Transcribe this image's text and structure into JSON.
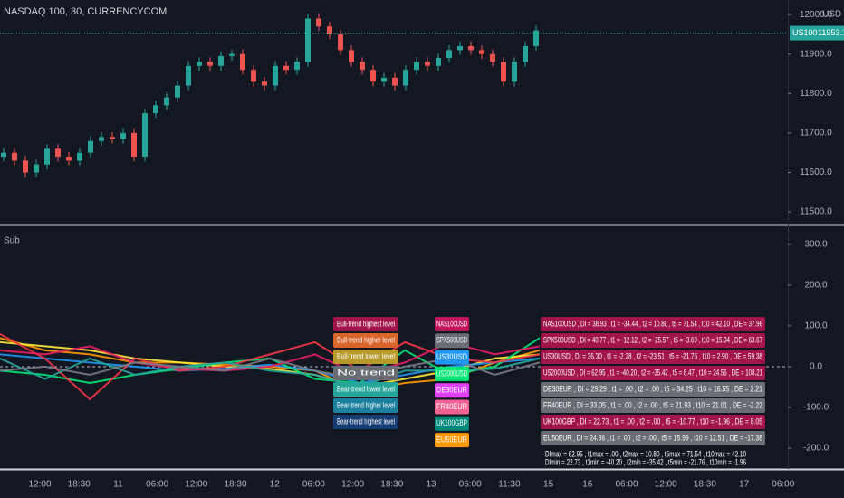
{
  "chart_data": [
    {
      "type": "candlestick",
      "title": "NASDAQ 100, 30, CURRENCYCOM",
      "currency": "USD",
      "up_color": "#26a69a",
      "down_color": "#ef5350",
      "price_line": {
        "label": "US100",
        "value": 11953.1,
        "color": "#26a69a"
      },
      "ylim": [
        11468,
        12037
      ],
      "yticks": [
        {
          "value": 11500,
          "label": "11500.0"
        },
        {
          "value": 11600,
          "label": "11600.0"
        },
        {
          "value": 11700,
          "label": "11700.0"
        },
        {
          "value": 11800,
          "label": "11800.0"
        },
        {
          "value": 11900,
          "label": "11900.0"
        },
        {
          "value": 12000,
          "label": "12000.0"
        }
      ],
      "open": [
        11640,
        11650,
        11630,
        11600,
        11620,
        11660,
        11640,
        11630,
        11650,
        11680,
        11690,
        11685,
        11700,
        11640,
        11750,
        11770,
        11790,
        11820,
        11870,
        11880,
        11870,
        11895,
        11900,
        11860,
        11830,
        11820,
        11870,
        11860,
        11880,
        11990,
        11970,
        11950,
        11910,
        11880,
        11860,
        11830,
        11840,
        11820,
        11860,
        11880,
        11870,
        11890,
        11910,
        11920,
        11910,
        11900,
        11880,
        11830,
        11880,
        11920
      ],
      "high": [
        11662,
        11662,
        11642,
        11632,
        11672,
        11672,
        11652,
        11662,
        11692,
        11702,
        11702,
        11712,
        11712,
        11762,
        11782,
        11802,
        11832,
        11882,
        11892,
        11892,
        11907,
        11912,
        11912,
        11872,
        11842,
        11882,
        11882,
        11892,
        12002,
        12002,
        11982,
        11962,
        11922,
        11892,
        11872,
        11852,
        11852,
        11872,
        11892,
        11892,
        11902,
        11922,
        11932,
        11932,
        11922,
        11912,
        11892,
        11892,
        11932,
        11972
      ],
      "low": [
        11628,
        11618,
        11588,
        11588,
        11608,
        11628,
        11618,
        11618,
        11638,
        11668,
        11673,
        11673,
        11628,
        11628,
        11738,
        11758,
        11778,
        11808,
        11858,
        11858,
        11858,
        11883,
        11848,
        11818,
        11808,
        11808,
        11848,
        11848,
        11868,
        11958,
        11938,
        11898,
        11868,
        11848,
        11818,
        11818,
        11808,
        11808,
        11848,
        11858,
        11858,
        11878,
        11898,
        11898,
        11888,
        11868,
        11818,
        11818,
        11868,
        11908
      ],
      "close": [
        11650,
        11630,
        11600,
        11620,
        11660,
        11640,
        11630,
        11650,
        11680,
        11690,
        11685,
        11700,
        11640,
        11750,
        11770,
        11790,
        11820,
        11870,
        11880,
        11870,
        11895,
        11900,
        11860,
        11830,
        11820,
        11870,
        11860,
        11880,
        11990,
        11970,
        11950,
        11910,
        11880,
        11860,
        11830,
        11840,
        11820,
        11860,
        11880,
        11870,
        11890,
        11910,
        11920,
        11910,
        11900,
        11880,
        11830,
        11880,
        11920,
        11960
      ]
    },
    {
      "type": "line",
      "title": "Sub",
      "ylim": [
        -251,
        344
      ],
      "yticks": [
        {
          "value": -200,
          "label": "-200.0"
        },
        {
          "value": -100,
          "label": "-100.0"
        },
        {
          "value": 0,
          "label": "0.0"
        },
        {
          "value": 100,
          "label": "100.0"
        },
        {
          "value": 200,
          "label": "200.0"
        },
        {
          "value": 300,
          "label": "300.0"
        }
      ],
      "hline": 0,
      "series": [
        {
          "color": "#ff9800",
          "values": [
            70,
            40,
            30,
            10,
            10,
            5,
            0,
            -10,
            -60,
            -40,
            -30,
            10,
            40
          ]
        },
        {
          "color": "#ffeb3b",
          "values": [
            60,
            50,
            40,
            20,
            10,
            0,
            -5,
            -20,
            -50,
            -30,
            -10,
            20,
            30
          ]
        },
        {
          "color": "#2196f3",
          "values": [
            30,
            20,
            10,
            0,
            -10,
            -5,
            5,
            -10,
            -40,
            -20,
            0,
            10,
            20
          ]
        },
        {
          "color": "#00e676",
          "values": [
            -10,
            -20,
            -40,
            -20,
            -5,
            10,
            20,
            -30,
            -40,
            40,
            -20,
            0,
            70
          ]
        },
        {
          "color": "#f23645",
          "values": [
            80,
            20,
            -80,
            20,
            -10,
            0,
            30,
            60,
            -10,
            60,
            20,
            10,
            30
          ]
        },
        {
          "color": "#e91e63",
          "values": [
            40,
            30,
            50,
            10,
            -5,
            -10,
            0,
            30,
            -20,
            10,
            60,
            30,
            50
          ]
        },
        {
          "color": "#26a69a",
          "values": [
            20,
            -30,
            20,
            -20,
            0,
            10,
            -10,
            -20,
            -50,
            -10,
            -10,
            -5,
            20
          ]
        },
        {
          "color": "#787b86",
          "values": [
            -10,
            0,
            -20,
            10,
            0,
            -10,
            20,
            -10,
            -30,
            0,
            20,
            -20,
            10
          ]
        }
      ],
      "trend_levels": [
        {
          "label": "Bull-trend highest level",
          "color": "#a3154a"
        },
        {
          "label": "Bull-trend higher level",
          "color": "#d9652b"
        },
        {
          "label": "Bull-trend lower level",
          "color": "#b89a2a"
        },
        {
          "label": "No trend",
          "color": "#6b6d75"
        },
        {
          "label": "Bear-trend lower level",
          "color": "#26a69a"
        },
        {
          "label": "Bear-trend higher level",
          "color": "#1b7f9e"
        },
        {
          "label": "Bear-trend highest level",
          "color": "#163d73"
        }
      ],
      "symbol_tags": [
        {
          "label": "NAS100USD",
          "color": "#c2185b"
        },
        {
          "label": "SPX500USD",
          "color": "#6b6d75"
        },
        {
          "label": "US30USD",
          "color": "#2196f3"
        },
        {
          "label": "US2000USD",
          "color": "#00e676"
        },
        {
          "label": "DE30EUR",
          "color": "#e040fb"
        },
        {
          "label": "FR40EUR",
          "color": "#f06292"
        },
        {
          "label": "UK100GBP",
          "color": "#00897b"
        },
        {
          "label": "EU50EUR",
          "color": "#ff9800"
        }
      ],
      "stats": [
        {
          "text": "NAS100USD , DI = 38.93 , t1 = -34.44 , t2 = 10.80 , t5 = 71.54 , t10 = 42.10 , DE = 37.96",
          "color": "#a3154a"
        },
        {
          "text": "SPX500USD , DI = 40.77 , t1 = -12.12 , t2 = -25.57 , t5 = -3.69 , t10 = 15.94 , DE = 63.67",
          "color": "#a3154a"
        },
        {
          "text": "US30USD , DI = 36.30 , t1 = -2.28 , t2 = -23.51 , t5 = -21.76 , t10 = 2.90 , DE = 59.38",
          "color": "#a3154a"
        },
        {
          "text": "US2000USD , DI = 62.95 , t1 = -40.20 , t2 = -35.42 , t5 = 8.47 , t10 = 24.56 , DE = 108.21",
          "color": "#a3154a"
        },
        {
          "text": "DE30EUR , DI = 29.29 , t1 = .00 , t2 = .00 , t5 = 34.25 , t10 = 16.55 , DE = 2.21",
          "color": "#6b6d75"
        },
        {
          "text": "FR40EUR , DI = 33.05 , t1 = .00 , t2 = .00 , t5 = 21.93 , t10 = 21.01 , DE = -2.22",
          "color": "#6b6d75"
        },
        {
          "text": "UK100GBP , DI = 22.73 , t1 = .00 , t2 = .00 , t5 = -10.77 , t10 = -1.96 , DE = 8.05",
          "color": "#a3154a"
        },
        {
          "text": "EU50EUR , DI = 24.36 , t1 = .00 , t2 = .00 , t5 = 15.99 , t10 = 12.51 , DE = -17.38",
          "color": "#6b6d75"
        }
      ],
      "summary": [
        "DImax = 62.95 , t1max = .00 , t2max = 10.80 , t5max = 71.54 , t10max = 42.10",
        "DImin = 22.73 , t1min = -40.20 , t2min = -35.42 , t5min = -21.76 , t10min = -1.96"
      ],
      "xtick_labels": [
        "12:00",
        "18:30",
        "11",
        "06:00",
        "12:00",
        "18:30",
        "12",
        "06:00",
        "12:00",
        "18:30",
        "13",
        "06:00",
        "11:30",
        "15",
        "16",
        "06:00",
        "12:00",
        "18:30",
        "17",
        "06:00"
      ]
    }
  ]
}
